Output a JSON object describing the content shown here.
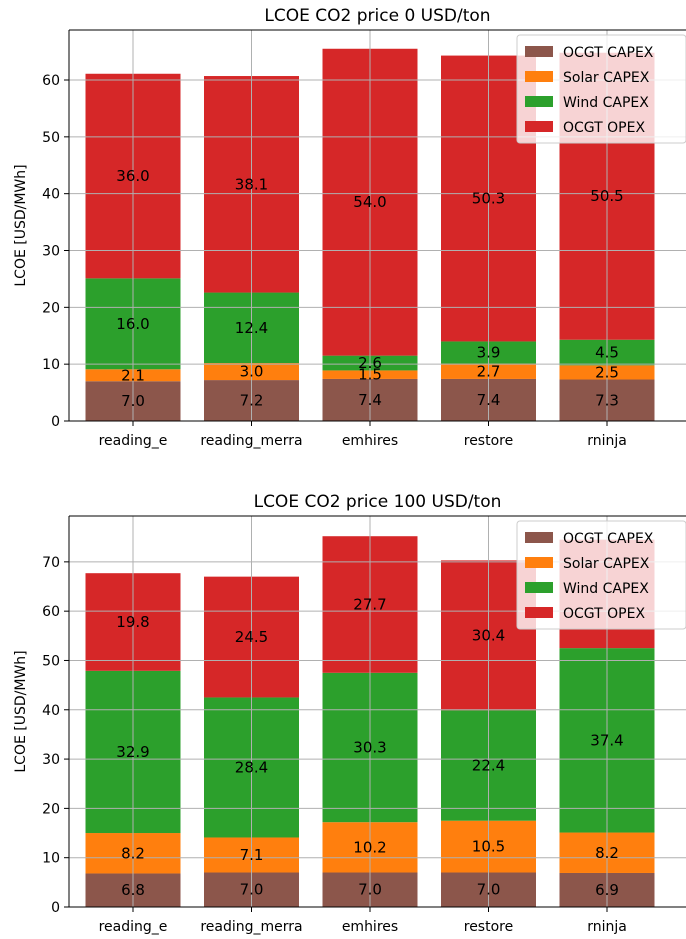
{
  "colors": {
    "ocgt_capex": "#8c564b",
    "solar_capex": "#ff7f0e",
    "wind_capex": "#2ca02c",
    "ocgt_opex": "#d62728",
    "grid": "#b0b0b0"
  },
  "chart_data": [
    {
      "type": "bar",
      "stacked": true,
      "title": "LCOE CO2 price 0 USD/ton",
      "ylabel": "LCOE [USD/MWh]",
      "xlabel": "",
      "ylim": [
        0,
        68.8
      ],
      "yticks": [
        0,
        10,
        20,
        30,
        40,
        50,
        60
      ],
      "grid": true,
      "legend": "top-right",
      "categories": [
        "reading_e",
        "reading_merra",
        "emhires",
        "restore",
        "rninja"
      ],
      "series": [
        {
          "name": "OCGT CAPEX",
          "color_key": "ocgt_capex",
          "values": [
            7.0,
            7.2,
            7.4,
            7.4,
            7.3
          ],
          "labels": [
            "7.0",
            "7.2",
            "7.4",
            "7.4",
            "7.3"
          ]
        },
        {
          "name": "Solar CAPEX",
          "color_key": "solar_capex",
          "values": [
            2.1,
            3.0,
            1.5,
            2.7,
            2.5
          ],
          "labels": [
            "2.1",
            "3.0",
            "1.5",
            "2.7",
            "2.5"
          ]
        },
        {
          "name": "Wind CAPEX",
          "color_key": "wind_capex",
          "values": [
            16.0,
            12.4,
            2.6,
            3.9,
            4.5
          ],
          "labels": [
            "16.0",
            "12.4",
            "2.6",
            "3.9",
            "4.5"
          ]
        },
        {
          "name": "OCGT OPEX",
          "color_key": "ocgt_opex",
          "values": [
            36.0,
            38.1,
            54.0,
            50.3,
            50.5
          ],
          "labels": [
            "36.0",
            "38.1",
            "54.0",
            "50.3",
            "50.5"
          ]
        }
      ]
    },
    {
      "type": "bar",
      "stacked": true,
      "title": "LCOE CO2 price 100 USD/ton",
      "ylabel": "LCOE [USD/MWh]",
      "xlabel": "",
      "ylim": [
        0,
        79.3
      ],
      "yticks": [
        0,
        10,
        20,
        30,
        40,
        50,
        60,
        70
      ],
      "grid": true,
      "legend": "top-right",
      "categories": [
        "reading_e",
        "reading_merra",
        "emhires",
        "restore",
        "rninja"
      ],
      "series": [
        {
          "name": "OCGT CAPEX",
          "color_key": "ocgt_capex",
          "values": [
            6.8,
            7.0,
            7.0,
            7.0,
            6.9
          ],
          "labels": [
            "6.8",
            "7.0",
            "7.0",
            "7.0",
            "6.9"
          ]
        },
        {
          "name": "Solar CAPEX",
          "color_key": "solar_capex",
          "values": [
            8.2,
            7.1,
            10.2,
            10.5,
            8.2
          ],
          "labels": [
            "8.2",
            "7.1",
            "10.2",
            "10.5",
            "8.2"
          ]
        },
        {
          "name": "Wind CAPEX",
          "color_key": "wind_capex",
          "values": [
            32.9,
            28.4,
            30.3,
            22.4,
            37.4
          ],
          "labels": [
            "32.9",
            "28.4",
            "30.3",
            "22.4",
            "37.4"
          ]
        },
        {
          "name": "OCGT OPEX",
          "color_key": "ocgt_opex",
          "values": [
            19.8,
            24.5,
            27.7,
            30.4,
            22.0
          ],
          "labels": [
            "19.8",
            "24.5",
            "27.7",
            "30.4",
            ""
          ]
        }
      ]
    }
  ]
}
